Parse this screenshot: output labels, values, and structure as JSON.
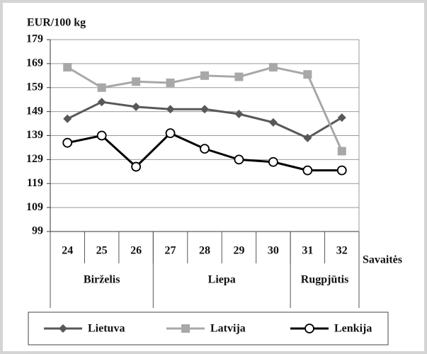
{
  "chart_data": {
    "type": "line",
    "y_label": "EUR/100 kg",
    "x_label": "Savaitės",
    "categories": [
      "24",
      "25",
      "26",
      "27",
      "28",
      "29",
      "30",
      "31",
      "32"
    ],
    "groups": [
      "Birželis",
      "Birželis",
      "Birželis",
      "Liepa",
      "Liepa",
      "Liepa",
      "Liepa",
      "Rugpjūtis",
      "Rugpjūtis"
    ],
    "series": [
      {
        "name": "Lietuva",
        "color": "#585858",
        "marker": "diamond",
        "values": [
          146,
          153,
          151,
          150,
          150,
          148,
          144.5,
          138,
          146.5
        ]
      },
      {
        "name": "Latvija",
        "color": "#a8a8a8",
        "marker": "square",
        "values": [
          167.5,
          159,
          161.5,
          161,
          164,
          163.5,
          167.5,
          164.5,
          132.5
        ]
      },
      {
        "name": "Lenkija",
        "color": "#000000",
        "marker": "circle",
        "values": [
          136,
          139,
          126,
          140,
          133.5,
          129,
          128,
          124.5,
          124.5
        ]
      }
    ],
    "ylim": [
      99,
      179
    ],
    "yticks": [
      99,
      109,
      119,
      129,
      139,
      149,
      159,
      169,
      179
    ],
    "grid": true,
    "legend": "bottom"
  }
}
